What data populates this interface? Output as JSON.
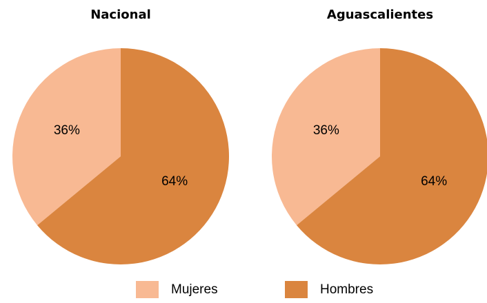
{
  "chart_data": [
    {
      "type": "pie",
      "title": "Nacional",
      "categories": [
        "Mujeres",
        "Hombres"
      ],
      "values": [
        36,
        64
      ],
      "value_labels": [
        "36%",
        "64%"
      ],
      "colors": [
        "#F8B993",
        "#DA853F"
      ]
    },
    {
      "type": "pie",
      "title": "Aguascalientes",
      "categories": [
        "Mujeres",
        "Hombres"
      ],
      "values": [
        36,
        64
      ],
      "value_labels": [
        "36%",
        "64%"
      ],
      "colors": [
        "#F8B993",
        "#DA853F"
      ]
    }
  ]
}
